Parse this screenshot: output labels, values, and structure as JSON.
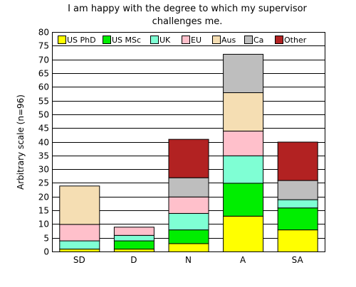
{
  "chart_data": {
    "type": "bar",
    "stacked": true,
    "title": [
      "I am happy with the degree to which my supervisor",
      "challenges me."
    ],
    "xlabel": "",
    "ylabel": "Arbitrary scale (n=96)",
    "ylim": [
      0,
      80
    ],
    "ytick_step": 5,
    "grid": true,
    "legend_position": "top",
    "categories": [
      "SD",
      "D",
      "N",
      "A",
      "SA"
    ],
    "series": [
      {
        "name": "US PhD",
        "color": "#ffff00",
        "values": [
          1,
          1,
          3,
          13,
          8
        ]
      },
      {
        "name": "US MSc",
        "color": "#00ee00",
        "values": [
          0,
          3,
          5,
          12,
          8
        ]
      },
      {
        "name": "UK",
        "color": "#7fffd4",
        "values": [
          3,
          2,
          6,
          10,
          3
        ]
      },
      {
        "name": "EU",
        "color": "#ffc0cb",
        "values": [
          6,
          3,
          6,
          9,
          0
        ]
      },
      {
        "name": "Aus",
        "color": "#f5deb3",
        "values": [
          14,
          0,
          0,
          14,
          0
        ]
      },
      {
        "name": "Ca",
        "color": "#bebebe",
        "values": [
          0,
          0,
          7,
          14,
          7
        ]
      },
      {
        "name": "Other",
        "color": "#b22222",
        "values": [
          0,
          0,
          14,
          0,
          14
        ]
      }
    ]
  }
}
